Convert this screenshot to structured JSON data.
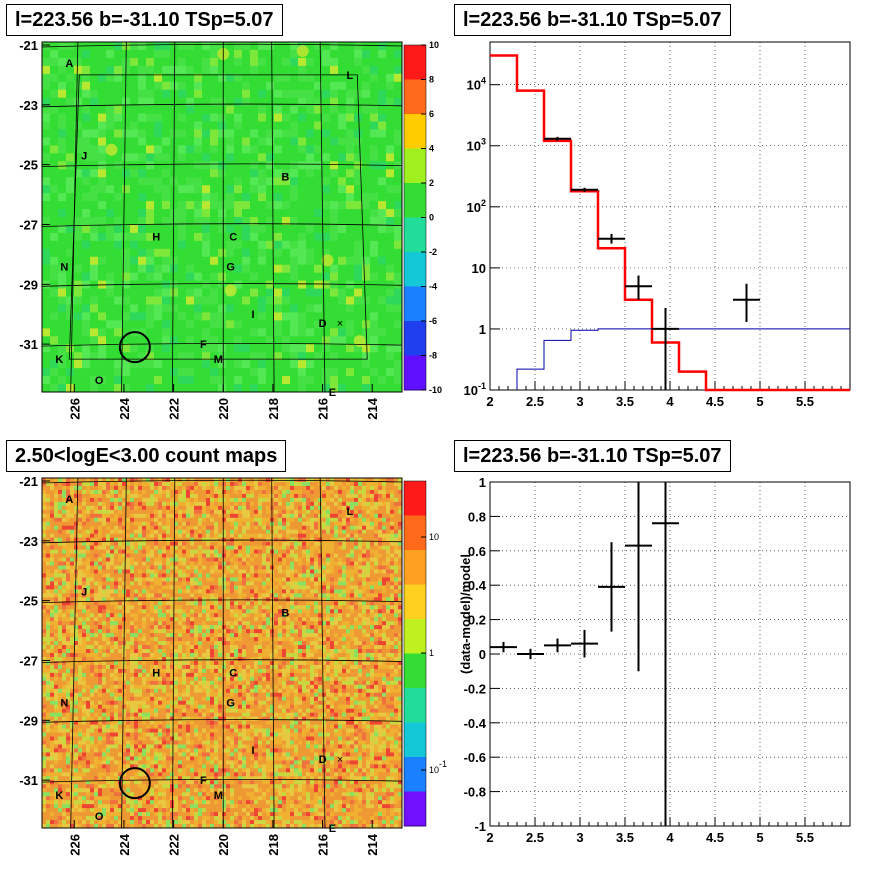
{
  "panels": {
    "tl_title": "l=223.56 b=-31.10 TSp=5.07",
    "tr_title": "l=223.56 b=-31.10 TSp=5.07",
    "bl_title": "2.50<logE<3.00 count maps",
    "br_title": "l=223.56 b=-31.10 TSp=5.07"
  },
  "colors": {
    "data": "#000000",
    "model_total": "#ff0000",
    "model_component": "#0000aa",
    "ts_map_base": "#33dd33",
    "count_map_base": "#ee9933"
  },
  "chart_data": [
    {
      "type": "heatmap",
      "name": "ts_map",
      "title": "l=223.56 b=-31.10 TSp=5.07",
      "x_ticks": [
        "226",
        "224",
        "222",
        "220",
        "218",
        "216",
        "214"
      ],
      "y_ticks": [
        "-21",
        "-23",
        "-25",
        "-27",
        "-29",
        "-31"
      ],
      "xlim": [
        227.3,
        212.8
      ],
      "ylim": [
        -32.6,
        -20.9
      ],
      "colorbar": {
        "min": -10,
        "max": 10,
        "ticks": [
          "10",
          "8",
          "6",
          "4",
          "2",
          "0",
          "-2",
          "-4",
          "-6",
          "-8",
          "-10"
        ]
      },
      "sources": [
        {
          "label": "A",
          "l": 226.2,
          "b": -21.6
        },
        {
          "label": "L",
          "l": 214.9,
          "b": -22.0
        },
        {
          "label": "J",
          "l": 225.6,
          "b": -24.7
        },
        {
          "label": "B",
          "l": 217.5,
          "b": -25.4
        },
        {
          "label": "H",
          "l": 222.7,
          "b": -27.4
        },
        {
          "label": "C",
          "l": 219.6,
          "b": -27.4
        },
        {
          "label": "N",
          "l": 226.4,
          "b": -28.4
        },
        {
          "label": "G",
          "l": 219.7,
          "b": -28.4
        },
        {
          "label": "I",
          "l": 218.8,
          "b": -30.0
        },
        {
          "label": "D",
          "l": 216.0,
          "b": -30.3
        },
        {
          "label": "F",
          "l": 220.8,
          "b": -31.0
        },
        {
          "label": "M",
          "l": 220.2,
          "b": -31.5
        },
        {
          "label": "K",
          "l": 226.6,
          "b": -31.5
        },
        {
          "label": "O",
          "l": 225.0,
          "b": -32.2
        },
        {
          "label": "E",
          "l": 215.6,
          "b": -32.6
        }
      ],
      "marker": {
        "l": 223.56,
        "b": -31.1
      }
    },
    {
      "type": "line",
      "name": "spectrum",
      "title": "l=223.56 b=-31.10 TSp=5.07",
      "xlim": [
        2,
        6
      ],
      "x_ticks": [
        "2",
        "2.5",
        "3",
        "3.5",
        "4",
        "4.5",
        "5",
        "5.5"
      ],
      "ylim": [
        0.1,
        50000
      ],
      "y_scale": "log",
      "y_ticks": [
        "10^-1",
        "1",
        "10",
        "10^2",
        "10^3",
        "10^4"
      ],
      "grid": true,
      "series": [
        {
          "style": "step",
          "role": "total_model",
          "bin_edges": [
            2.0,
            2.3,
            2.6,
            2.9,
            3.2,
            3.5,
            3.8,
            4.1,
            4.4,
            6.0
          ],
          "values": [
            30000,
            8000,
            1200,
            180,
            21,
            3.0,
            0.6,
            0.2,
            0.1
          ]
        },
        {
          "style": "step",
          "role": "source_model",
          "bin_edges": [
            2.3,
            2.6,
            2.9,
            3.2,
            3.5,
            3.8,
            4.1,
            4.4,
            6.0
          ],
          "values": [
            0.22,
            0.65,
            0.95,
            1.0,
            1.0,
            1.0,
            1.0,
            1.0
          ]
        },
        {
          "style": "errorbar",
          "role": "data",
          "points": [
            {
              "x": 2.75,
              "xerr": 0.15,
              "y": 1300,
              "ylo": 1200,
              "yhi": 1400
            },
            {
              "x": 3.05,
              "xerr": 0.15,
              "y": 190,
              "ylo": 175,
              "yhi": 205
            },
            {
              "x": 3.35,
              "xerr": 0.15,
              "y": 30,
              "ylo": 25,
              "yhi": 36
            },
            {
              "x": 3.65,
              "xerr": 0.15,
              "y": 5,
              "ylo": 3,
              "yhi": 7.5
            },
            {
              "x": 3.95,
              "xerr": 0.15,
              "y": 1.0,
              "ylo": 0.1,
              "yhi": 2.2
            },
            {
              "x": 4.85,
              "xerr": 0.15,
              "y": 3,
              "ylo": 1.3,
              "yhi": 5.5
            }
          ]
        }
      ]
    },
    {
      "type": "heatmap",
      "name": "count_map",
      "title": "2.50<logE<3.00 count maps",
      "x_ticks": [
        "226",
        "224",
        "222",
        "220",
        "218",
        "216",
        "214"
      ],
      "y_ticks": [
        "-21",
        "-23",
        "-25",
        "-27",
        "-29",
        "-31"
      ],
      "xlim": [
        227.3,
        212.8
      ],
      "ylim": [
        -32.6,
        -20.9
      ],
      "colorbar": {
        "scale": "log",
        "ticks": [
          "10",
          "1",
          "10^-1"
        ]
      }
    },
    {
      "type": "scatter",
      "name": "residuals",
      "title": "l=223.56 b=-31.10 TSp=5.07",
      "ylabel": "(data-model)/model",
      "xlim": [
        2,
        6
      ],
      "x_ticks": [
        "2",
        "2.5",
        "3",
        "3.5",
        "4",
        "4.5",
        "5",
        "5.5"
      ],
      "ylim": [
        -1,
        1
      ],
      "y_ticks": [
        "1",
        "0.8",
        "0.6",
        "0.4",
        "0.2",
        "0",
        "-0.2",
        "-0.4",
        "-0.6",
        "-0.8",
        "-1"
      ],
      "grid": true,
      "points": [
        {
          "x": 2.15,
          "xerr": 0.15,
          "y": 0.04,
          "yerr": 0.03
        },
        {
          "x": 2.45,
          "xerr": 0.15,
          "y": 0.0,
          "yerr": 0.03
        },
        {
          "x": 2.75,
          "xerr": 0.15,
          "y": 0.05,
          "yerr": 0.04
        },
        {
          "x": 3.05,
          "xerr": 0.15,
          "y": 0.06,
          "yerr": 0.08
        },
        {
          "x": 3.35,
          "xerr": 0.15,
          "y": 0.39,
          "yerr": 0.26
        },
        {
          "x": 3.65,
          "xerr": 0.15,
          "y": 0.63,
          "yerr": 0.73
        },
        {
          "x": 3.95,
          "xerr": 0.15,
          "y": 0.76,
          "yerr": 1.8
        }
      ]
    }
  ]
}
